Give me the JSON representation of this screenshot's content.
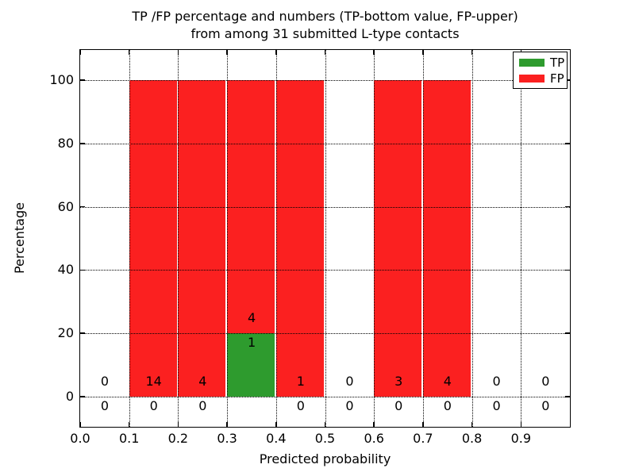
{
  "figure": {
    "title_line1": "TP /FP percentage and numbers (TP-bottom value, FP-upper)",
    "title_line2": "from among 31 submitted L-type contacts"
  },
  "chart_data": {
    "type": "bar",
    "stacked": true,
    "title": "TP /FP percentage and numbers (TP-bottom value, FP-upper) from among 31 submitted L-type contacts",
    "xlabel": "Predicted probability",
    "ylabel": "Percentage",
    "total_contacts": 31,
    "xlim": [
      0.0,
      1.0
    ],
    "ylim": [
      -9.5,
      109.8
    ],
    "xticks": [
      0.0,
      0.1,
      0.2,
      0.3,
      0.4,
      0.5,
      0.6,
      0.7,
      0.8,
      0.9
    ],
    "xtick_labels": [
      "0.0",
      "0.1",
      "0.2",
      "0.3",
      "0.4",
      "0.5",
      "0.6",
      "0.7",
      "0.8",
      "0.9"
    ],
    "yticks": [
      0,
      20,
      40,
      60,
      80,
      100
    ],
    "ytick_labels": [
      "0",
      "20",
      "40",
      "60",
      "80",
      "100"
    ],
    "grid": "dotted, both axes, drawn above bars",
    "legend": {
      "position": "upper right",
      "entries": [
        {
          "label": "TP",
          "color": "#2e9b2e"
        },
        {
          "label": "FP",
          "color": "#fb2020"
        }
      ]
    },
    "bins": [
      {
        "x0": 0.0,
        "x1": 0.1,
        "tp_count": 0,
        "fp_count": 0,
        "tp_pct": 0,
        "fp_pct": 0
      },
      {
        "x0": 0.1,
        "x1": 0.2,
        "tp_count": 0,
        "fp_count": 14,
        "tp_pct": 0,
        "fp_pct": 100
      },
      {
        "x0": 0.2,
        "x1": 0.3,
        "tp_count": 0,
        "fp_count": 4,
        "tp_pct": 0,
        "fp_pct": 100
      },
      {
        "x0": 0.3,
        "x1": 0.4,
        "tp_count": 1,
        "fp_count": 4,
        "tp_pct": 20,
        "fp_pct": 80
      },
      {
        "x0": 0.4,
        "x1": 0.5,
        "tp_count": 0,
        "fp_count": 1,
        "tp_pct": 0,
        "fp_pct": 100
      },
      {
        "x0": 0.5,
        "x1": 0.6,
        "tp_count": 0,
        "fp_count": 0,
        "tp_pct": 0,
        "fp_pct": 0
      },
      {
        "x0": 0.6,
        "x1": 0.7,
        "tp_count": 0,
        "fp_count": 3,
        "tp_pct": 0,
        "fp_pct": 100
      },
      {
        "x0": 0.7,
        "x1": 0.8,
        "tp_count": 0,
        "fp_count": 4,
        "tp_pct": 0,
        "fp_pct": 100
      },
      {
        "x0": 0.8,
        "x1": 0.9,
        "tp_count": 0,
        "fp_count": 0,
        "tp_pct": 0,
        "fp_pct": 0
      },
      {
        "x0": 0.9,
        "x1": 1.0,
        "tp_count": 0,
        "fp_count": 0,
        "tp_pct": 0,
        "fp_pct": 0
      }
    ]
  },
  "colors": {
    "tp": "#2e9b2e",
    "fp": "#fb2020",
    "grid": "#000000",
    "text": "#000000",
    "background": "#ffffff"
  }
}
